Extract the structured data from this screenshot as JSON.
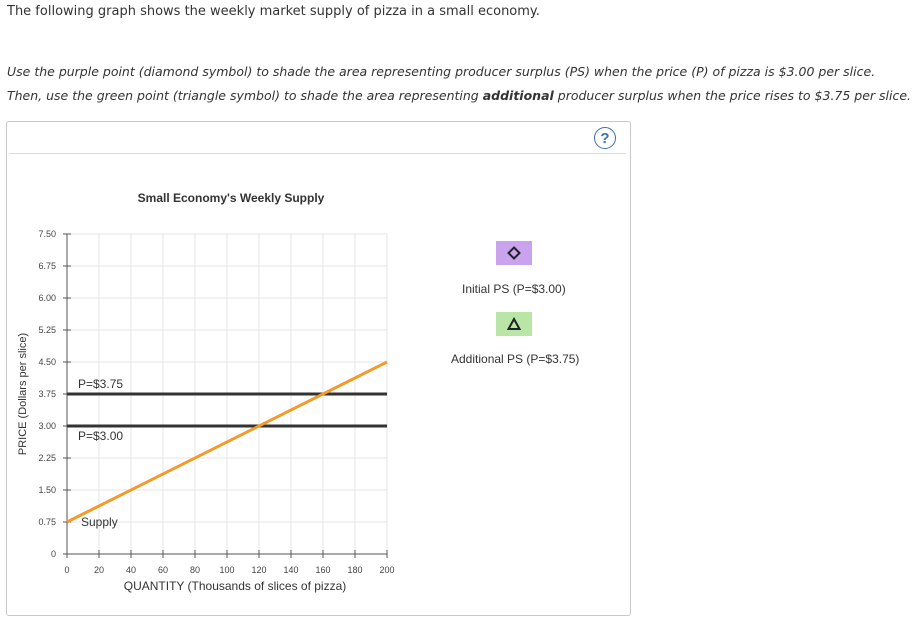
{
  "question": {
    "intro": "The following graph shows the weekly market supply of pizza in a small economy.",
    "instruction_part1": "Use the purple point (diamond symbol) to shade the area representing producer surplus (PS) when the price (P) of pizza is $3.00 per slice. Then, use the green point (triangle symbol) to shade the area representing ",
    "instruction_bold": "additional",
    "instruction_part2": " producer surplus when the price rises to $3.75 per slice."
  },
  "help_label": "?",
  "legend": {
    "initial_ps_label": "Initial PS (P=$3.00)",
    "initial_ps_color": "#c9a3ee",
    "initial_ps_icon": "diamond-icon",
    "additional_ps_label": "Additional PS (P=$3.75)",
    "additional_ps_color": "#b9e6a7",
    "additional_ps_icon": "triangle-icon"
  },
  "chart_data": {
    "type": "line",
    "title": "Small Economy's Weekly Supply",
    "xlabel": "QUANTITY (Thousands of slices of pizza)",
    "ylabel": "PRICE (Dollars per slice)",
    "xlim": [
      0,
      200
    ],
    "ylim": [
      0,
      7.5
    ],
    "x_ticks": [
      "0",
      "20",
      "40",
      "60",
      "80",
      "100",
      "120",
      "140",
      "160",
      "180",
      "200"
    ],
    "x_tick_values": [
      0,
      20,
      40,
      60,
      80,
      100,
      120,
      140,
      160,
      180,
      200
    ],
    "y_ticks": [
      "0",
      "0.75",
      "1.50",
      "2.25",
      "3.00",
      "3.75",
      "4.50",
      "5.25",
      "6.00",
      "6.75",
      "7.50"
    ],
    "y_tick_values": [
      0,
      0.75,
      1.5,
      2.25,
      3.0,
      3.75,
      4.5,
      5.25,
      6.0,
      6.75,
      7.5
    ],
    "grid": true,
    "series": [
      {
        "name": "Supply",
        "color": "#f39a2b",
        "x": [
          0,
          200
        ],
        "y": [
          0.75,
          4.5
        ]
      }
    ],
    "price_lines": [
      {
        "label": "P=$3.75",
        "y": 3.75,
        "color": "#333333"
      },
      {
        "label": "P=$3.00",
        "y": 3.0,
        "color": "#333333"
      }
    ]
  }
}
